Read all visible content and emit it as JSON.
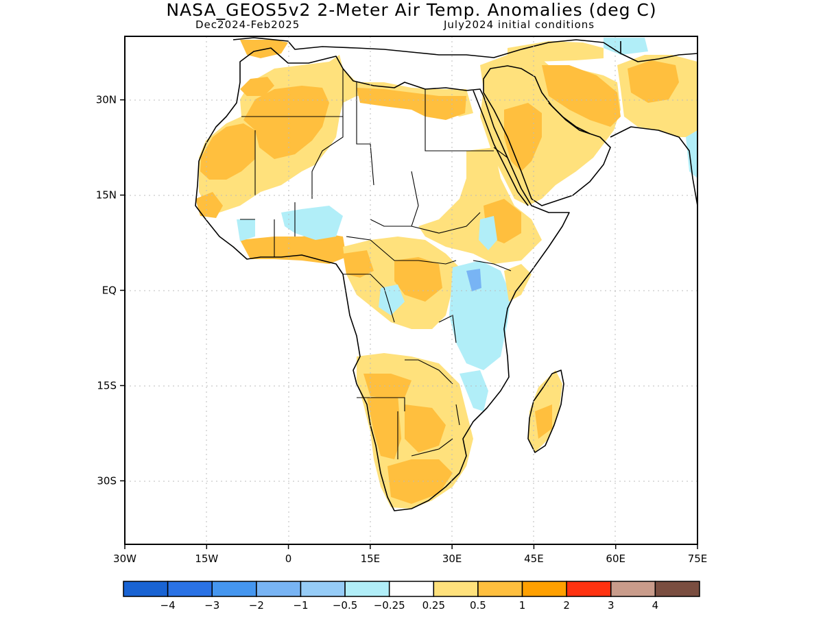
{
  "header": {
    "title": "NASA_GEOS5v2 2-Meter Air Temp. Anomalies (deg C)",
    "period": "Dec2024-Feb2025",
    "init": "July2024 initial conditions"
  },
  "axes": {
    "lat_labels": [
      {
        "value": 30,
        "text": "30N"
      },
      {
        "value": 15,
        "text": "15N"
      },
      {
        "value": 0,
        "text": "EQ"
      },
      {
        "value": -15,
        "text": "15S"
      },
      {
        "value": -30,
        "text": "30S"
      }
    ],
    "lon_labels": [
      {
        "value": -30,
        "text": "30W"
      },
      {
        "value": -15,
        "text": "15W"
      },
      {
        "value": 0,
        "text": "0"
      },
      {
        "value": 15,
        "text": "15E"
      },
      {
        "value": 30,
        "text": "30E"
      },
      {
        "value": 45,
        "text": "45E"
      },
      {
        "value": 60,
        "text": "60E"
      },
      {
        "value": 75,
        "text": "75E"
      }
    ],
    "lon_range": [
      -30,
      75
    ],
    "lat_range": [
      -40,
      40
    ]
  },
  "colorbar": {
    "colors": [
      "#1963d3",
      "#2a72e5",
      "#4596ef",
      "#78b4f4",
      "#96ccf7",
      "#b1eef8",
      "#ffffff",
      "#ffe17c",
      "#ffbf3e",
      "#ffa000",
      "#ff3210",
      "#c99c8b",
      "#7a4e40"
    ],
    "labels": [
      "-4",
      "-3",
      "-2",
      "-1",
      "-0.5",
      "-0.25",
      "0.25",
      "0.5",
      "1",
      "2",
      "3",
      "4"
    ]
  },
  "palette": {
    "neg_strong": "#78b4f4",
    "neg_light": "#b1eef8",
    "pos_light": "#ffe17c",
    "pos_mid": "#ffbf3e",
    "land_outline": "#000000"
  }
}
